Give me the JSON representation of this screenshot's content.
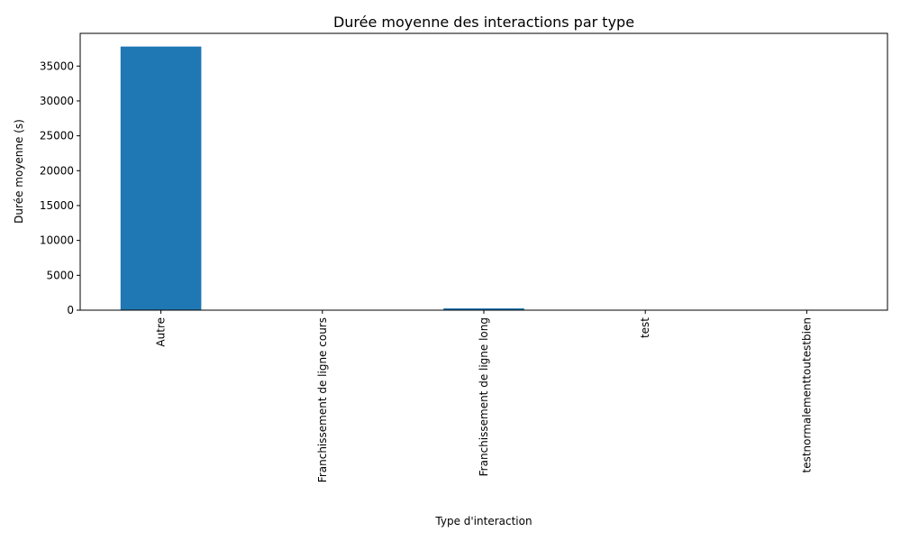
{
  "chart_data": {
    "type": "bar",
    "title": "Durée moyenne des interactions par type",
    "xlabel": "Type d'interaction",
    "ylabel": "Durée moyenne (s)",
    "categories": [
      "Autre",
      "Franchissement de ligne cours",
      "Franchissement de ligne long",
      "test",
      "testnormalementtoutestbien"
    ],
    "values": [
      37800,
      30,
      260,
      5,
      10
    ],
    "ylim": [
      0,
      39690
    ],
    "yticks": [
      0,
      5000,
      10000,
      15000,
      20000,
      25000,
      30000,
      35000
    ],
    "grid": false,
    "color": "#1f77b4"
  }
}
